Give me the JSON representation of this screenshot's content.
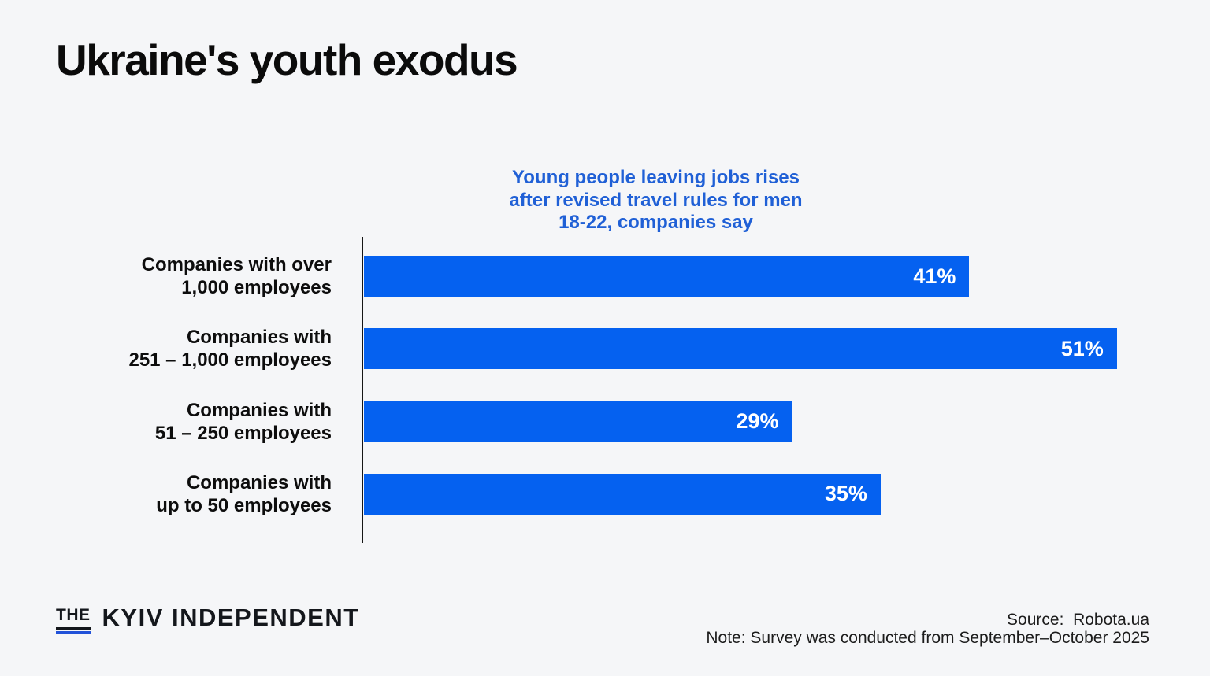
{
  "page": {
    "background": "#f5f6f8"
  },
  "header": {
    "title": "Ukraine's youth exodus"
  },
  "chart_data": {
    "type": "bar",
    "orientation": "horizontal",
    "title": "Young people leaving jobs rises\nafter revised travel rules for men\n18-22, companies say",
    "title_color": "#2060d6",
    "categories": [
      "Companies with over\n1,000 employees",
      "Companies with\n251 – 1,000 employees",
      "Companies with\n51 – 250 employees",
      "Companies with\nup to 50 employees"
    ],
    "values": [
      41,
      51,
      29,
      35
    ],
    "value_labels": [
      "41%",
      "51%",
      "29%",
      "35%"
    ],
    "value_suffix": "%",
    "xlim": [
      0,
      54
    ],
    "grid": false,
    "legend": "none",
    "bar_color": "#0561f0",
    "value_label_color": "#ffffff",
    "axis_color": "#161616"
  },
  "footer": {
    "logo": {
      "the": "THE",
      "name": "KYIV INDEPENDENT",
      "underline_color": "#2152d9"
    },
    "source": "Source:  Robota.ua",
    "note": "Note: Survey was conducted from September–October 2025"
  }
}
